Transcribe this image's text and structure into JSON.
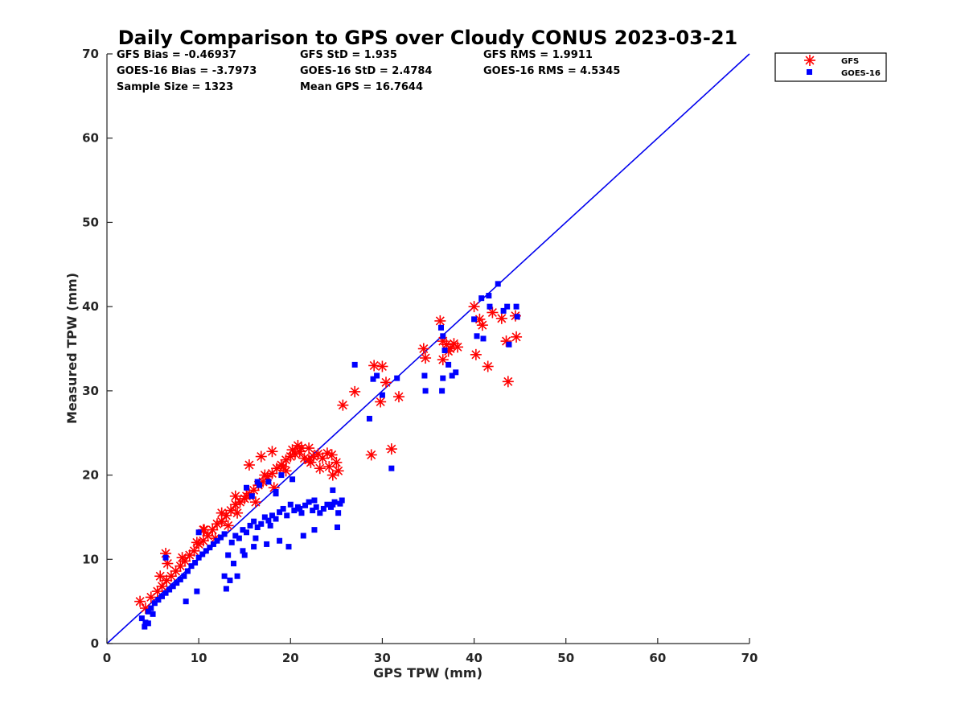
{
  "chart_data": {
    "type": "scatter",
    "title": "Daily Comparison to GPS over Cloudy CONUS 2023-03-21",
    "xlabel": "GPS TPW (mm)",
    "ylabel": "Measured TPW (mm)",
    "xlim": [
      0,
      70
    ],
    "ylim": [
      0,
      70
    ],
    "xticks": [
      "0",
      "10",
      "20",
      "30",
      "40",
      "50",
      "60",
      "70"
    ],
    "yticks": [
      "0",
      "10",
      "20",
      "30",
      "40",
      "50",
      "60",
      "70"
    ],
    "grid": false,
    "legend_position": "outside-top-right",
    "reference_line": {
      "x": [
        0,
        70
      ],
      "y": [
        0,
        70
      ],
      "color": "#0000ee"
    },
    "stats": [
      [
        "GFS Bias = -0.46937",
        "GFS StD = 1.935",
        "GFS RMS = 1.9911"
      ],
      [
        "GOES-16 Bias = -3.7973",
        "GOES-16 StD = 2.4784",
        "GOES-16 RMS = 4.5345"
      ],
      [
        "Sample Size = 1323",
        "Mean GPS = 16.7644",
        ""
      ]
    ],
    "series": [
      {
        "name": "GFS",
        "marker": "asterisk",
        "color": "#ff0000",
        "x": [
          3.6,
          4.2,
          4.8,
          5.5,
          6.0,
          6.5,
          7.0,
          7.5,
          8.0,
          8.5,
          9.0,
          9.5,
          10.0,
          10.5,
          11.0,
          11.5,
          12.0,
          12.5,
          13.0,
          13.5,
          14.0,
          14.5,
          15.0,
          15.5,
          16.0,
          16.5,
          17.0,
          17.5,
          18.0,
          18.5,
          19.0,
          19.5,
          20.0,
          20.5,
          21.0,
          21.5,
          22.0,
          22.5,
          23.0,
          23.5,
          24.0,
          24.5,
          25.0,
          5.8,
          6.6,
          8.2,
          9.8,
          10.6,
          11.8,
          13.2,
          14.2,
          15.2,
          16.2,
          17.2,
          18.2,
          19.2,
          20.2,
          21.2,
          22.2,
          23.2,
          24.2,
          25.2,
          15.5,
          16.8,
          18.0,
          19.5,
          20.8,
          22.0,
          24.6,
          12.5,
          14.0,
          25.7,
          27.0,
          28.8,
          29.1,
          29.8,
          30.0,
          30.4,
          31.0,
          31.8,
          34.5,
          34.7,
          36.3,
          36.6,
          37.0,
          37.4,
          37.8,
          38.2,
          40.0,
          40.2,
          40.6,
          40.9,
          41.5,
          42.0,
          43.0,
          43.5,
          43.7,
          44.5,
          44.6,
          36.6,
          37.2,
          6.4,
          10.5
        ],
        "y": [
          5.0,
          4.2,
          5.5,
          6.2,
          6.8,
          7.5,
          8.0,
          8.6,
          9.2,
          9.8,
          10.5,
          11.0,
          11.8,
          12.2,
          12.8,
          13.5,
          14.2,
          14.5,
          15.2,
          15.8,
          16.5,
          16.8,
          17.2,
          17.8,
          18.2,
          18.8,
          19.2,
          19.8,
          20.2,
          20.8,
          21.2,
          21.8,
          22.2,
          22.5,
          22.8,
          22.0,
          21.8,
          22.2,
          22.5,
          22.0,
          22.6,
          22.4,
          21.5,
          8.0,
          9.5,
          10.2,
          12.0,
          13.5,
          12.5,
          14.0,
          15.5,
          17.5,
          16.8,
          20.0,
          18.5,
          21.0,
          23.0,
          23.2,
          21.5,
          20.8,
          21.0,
          20.5,
          21.2,
          22.2,
          22.8,
          20.5,
          23.5,
          23.2,
          20.0,
          15.5,
          17.5,
          28.3,
          29.9,
          22.4,
          33.0,
          28.7,
          32.9,
          31.0,
          23.1,
          29.3,
          35.0,
          33.9,
          38.3,
          35.9,
          35.5,
          35.0,
          35.6,
          35.2,
          40.0,
          34.3,
          38.5,
          37.8,
          32.9,
          39.3,
          38.6,
          35.9,
          31.1,
          38.9,
          36.4,
          33.7,
          34.7,
          10.7,
          13.5
        ]
      },
      {
        "name": "GOES-16",
        "marker": "square",
        "color": "#0000ff",
        "x": [
          3.8,
          4.2,
          4.5,
          4.8,
          5.2,
          5.6,
          6.0,
          6.4,
          6.8,
          7.2,
          7.6,
          8.0,
          8.4,
          8.8,
          9.2,
          9.6,
          10.0,
          10.4,
          10.8,
          11.2,
          11.6,
          12.0,
          12.4,
          12.8,
          13.2,
          13.6,
          14.0,
          14.4,
          14.8,
          15.2,
          15.6,
          16.0,
          16.4,
          16.8,
          17.2,
          17.6,
          18.0,
          18.4,
          18.8,
          19.2,
          19.6,
          20.0,
          20.4,
          20.8,
          21.2,
          21.6,
          22.0,
          22.4,
          22.8,
          23.2,
          23.6,
          24.0,
          24.4,
          24.8,
          25.2,
          25.4,
          13.0,
          13.4,
          14.2,
          15.0,
          16.0,
          17.4,
          18.8,
          19.8,
          21.4,
          22.6,
          15.8,
          16.6,
          17.6,
          18.4,
          19.0,
          20.2,
          6.4,
          10.0,
          15.2,
          16.4,
          18.4,
          24.6,
          25.1,
          25.6,
          27.0,
          28.6,
          29.0,
          29.4,
          30.0,
          31.0,
          31.6,
          34.6,
          34.7,
          36.4,
          36.6,
          36.8,
          37.2,
          37.6,
          38.0,
          40.0,
          40.3,
          40.8,
          41.0,
          41.6,
          42.6,
          43.2,
          43.6,
          43.8,
          44.6,
          44.7,
          36.6,
          36.5,
          41.7,
          4.1,
          4.5,
          5.0,
          8.6,
          9.8,
          12.8,
          13.8,
          14.8,
          16.2,
          17.8,
          21.0,
          22.6,
          24.6
        ],
        "y": [
          3.0,
          2.5,
          3.8,
          4.2,
          4.8,
          5.2,
          5.6,
          6.0,
          6.4,
          6.8,
          7.2,
          7.6,
          8.0,
          8.6,
          9.2,
          9.6,
          10.2,
          10.6,
          11.0,
          11.4,
          11.8,
          12.2,
          12.6,
          13.0,
          10.5,
          12.0,
          12.8,
          12.5,
          13.5,
          13.2,
          14.0,
          14.5,
          13.8,
          14.2,
          15.0,
          14.6,
          15.2,
          14.8,
          15.6,
          16.0,
          15.2,
          16.5,
          15.8,
          16.2,
          15.5,
          16.4,
          16.8,
          15.8,
          16.2,
          15.5,
          16.0,
          16.5,
          16.2,
          16.8,
          15.5,
          16.6,
          6.5,
          7.5,
          8.0,
          10.5,
          11.5,
          11.8,
          12.2,
          11.5,
          12.8,
          13.5,
          17.5,
          18.8,
          19.2,
          18.0,
          20.0,
          19.5,
          10.2,
          13.2,
          18.5,
          19.2,
          17.8,
          18.2,
          13.8,
          17.0,
          33.1,
          26.7,
          31.4,
          31.8,
          29.5,
          20.8,
          31.5,
          31.8,
          30.0,
          37.5,
          36.5,
          34.8,
          33.1,
          31.8,
          32.2,
          38.5,
          36.5,
          41.0,
          36.2,
          41.3,
          42.7,
          39.5,
          40.0,
          35.5,
          40.0,
          38.8,
          31.5,
          30.0,
          40.0,
          2.0,
          2.4,
          3.5,
          5.0,
          6.2,
          8.0,
          9.5,
          11.0,
          12.5,
          14.0,
          16.0,
          17.0,
          16.5
        ]
      }
    ]
  }
}
